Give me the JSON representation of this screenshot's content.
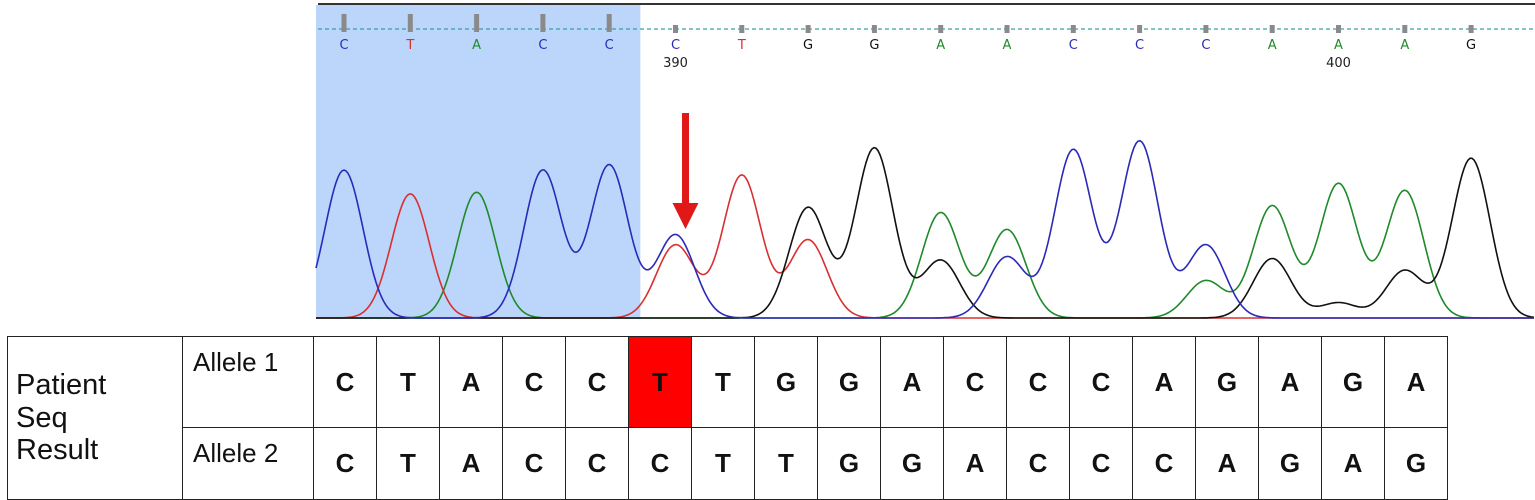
{
  "chromatogram": {
    "base_calls": [
      {
        "base": "C",
        "color": "#2a2ab8"
      },
      {
        "base": "T",
        "color": "#d83030"
      },
      {
        "base": "A",
        "color": "#1e8a2a"
      },
      {
        "base": "C",
        "color": "#2a2ab8"
      },
      {
        "base": "C",
        "color": "#2a2ab8"
      },
      {
        "base": "C",
        "color": "#2a2ab8"
      },
      {
        "base": "T",
        "color": "#d83030"
      },
      {
        "base": "G",
        "color": "#111111"
      },
      {
        "base": "G",
        "color": "#111111"
      },
      {
        "base": "A",
        "color": "#1e8a2a"
      },
      {
        "base": "A",
        "color": "#1e8a2a"
      },
      {
        "base": "C",
        "color": "#2a2ab8"
      },
      {
        "base": "C",
        "color": "#2a2ab8"
      },
      {
        "base": "C",
        "color": "#2a2ab8"
      },
      {
        "base": "A",
        "color": "#1e8a2a"
      },
      {
        "base": "A",
        "color": "#1e8a2a"
      },
      {
        "base": "A",
        "color": "#1e8a2a"
      },
      {
        "base": "G",
        "color": "#111111"
      }
    ],
    "position_labels": [
      {
        "index": 5,
        "text": "390"
      },
      {
        "index": 15,
        "text": "400"
      }
    ],
    "highlight_count": 5,
    "arrow_index": 5,
    "trace_colors": {
      "A": "#1e8a2a",
      "C": "#2a2ab8",
      "G": "#111111",
      "T": "#d83030"
    },
    "peaks": [
      {
        "index": 0,
        "traces": {
          "C": 0.87
        }
      },
      {
        "index": 1,
        "traces": {
          "T": 0.73
        }
      },
      {
        "index": 2,
        "traces": {
          "A": 0.74
        }
      },
      {
        "index": 3,
        "traces": {
          "C": 0.87
        }
      },
      {
        "index": 4,
        "traces": {
          "C": 0.9
        }
      },
      {
        "index": 5,
        "traces": {
          "C": 0.49,
          "T": 0.43
        }
      },
      {
        "index": 6,
        "traces": {
          "T": 0.84
        }
      },
      {
        "index": 7,
        "traces": {
          "G": 0.65,
          "T": 0.46
        }
      },
      {
        "index": 8,
        "traces": {
          "G": 1.0
        }
      },
      {
        "index": 9,
        "traces": {
          "A": 0.62,
          "G": 0.34
        }
      },
      {
        "index": 10,
        "traces": {
          "A": 0.52,
          "C": 0.36
        }
      },
      {
        "index": 11,
        "traces": {
          "C": 0.99
        }
      },
      {
        "index": 12,
        "traces": {
          "C": 1.04
        }
      },
      {
        "index": 13,
        "traces": {
          "C": 0.43,
          "A": 0.22
        }
      },
      {
        "index": 14,
        "traces": {
          "A": 0.66,
          "G": 0.35
        }
      },
      {
        "index": 15,
        "traces": {
          "A": 0.79,
          "G": 0.09
        }
      },
      {
        "index": 16,
        "traces": {
          "A": 0.75,
          "G": 0.28
        }
      },
      {
        "index": 17,
        "traces": {
          "G": 0.94
        }
      }
    ]
  },
  "table": {
    "title_lines": [
      "Patient",
      "Seq",
      "Result"
    ],
    "allele1_label": "Allele 1",
    "allele2_label": "Allele 2",
    "allele1": [
      "C",
      "T",
      "A",
      "C",
      "C",
      "T",
      "T",
      "G",
      "G",
      "A",
      "C",
      "C",
      "C",
      "A",
      "G",
      "A",
      "G",
      "A"
    ],
    "allele2": [
      "C",
      "T",
      "A",
      "C",
      "C",
      "C",
      "T",
      "T",
      "G",
      "G",
      "A",
      "C",
      "C",
      "C",
      "A",
      "G",
      "A",
      "G"
    ],
    "highlight_index": 5,
    "highlight_color": "#ff0000"
  }
}
